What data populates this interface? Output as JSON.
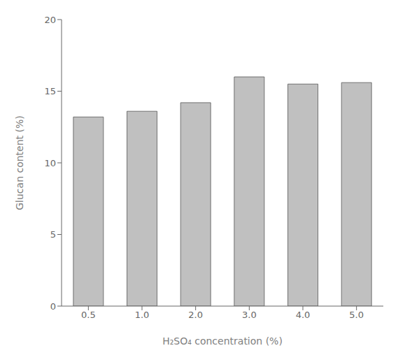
{
  "chart_data": {
    "type": "bar",
    "categories": [
      "0.5",
      "1.0",
      "2.0",
      "3.0",
      "4.0",
      "5.0"
    ],
    "values": [
      13.2,
      13.6,
      14.2,
      16.0,
      15.5,
      15.6
    ],
    "color": "#c0c0c0",
    "xlabel": "H₂SO₄ concentration (%)",
    "ylabel": "Glucan content (%)",
    "ylim": [
      0,
      20
    ],
    "yticks": [
      0,
      5,
      10,
      15,
      20
    ],
    "grid": false
  }
}
